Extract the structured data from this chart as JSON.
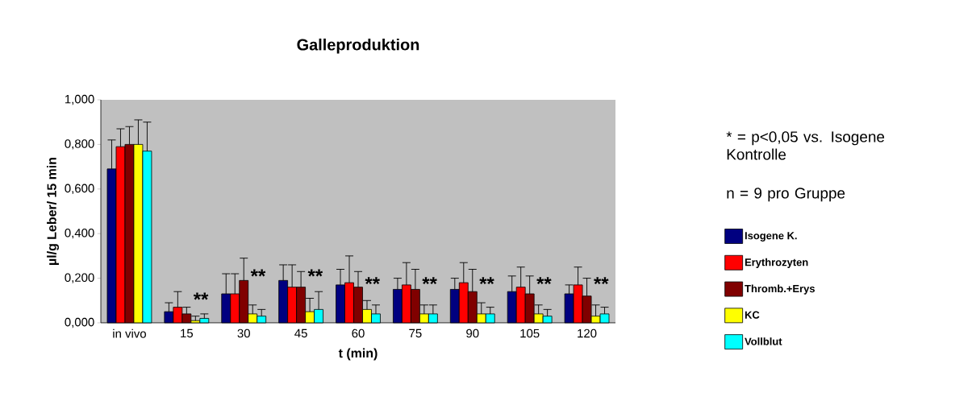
{
  "chart_data": {
    "type": "bar",
    "title": "Galleproduktion",
    "xlabel": "t (min)",
    "ylabel": "µl/g Leber/ 15 min",
    "categories": [
      "in vivo",
      "15",
      "30",
      "45",
      "60",
      "75",
      "90",
      "105",
      "120"
    ],
    "series": [
      {
        "name": "Isogene K.",
        "color": "#000080",
        "values": [
          0.69,
          0.05,
          0.13,
          0.19,
          0.17,
          0.15,
          0.15,
          0.14,
          0.13
        ],
        "errors": [
          [
            0.69,
            0.82
          ],
          [
            0.05,
            0.09
          ],
          [
            0.13,
            0.22
          ],
          [
            0.19,
            0.26
          ],
          [
            0.17,
            0.24
          ],
          [
            0.15,
            0.2
          ],
          [
            0.15,
            0.2
          ],
          [
            0.14,
            0.21
          ],
          [
            0.13,
            0.17
          ]
        ]
      },
      {
        "name": "Erythrozyten",
        "color": "#ff0000",
        "values": [
          0.79,
          0.07,
          0.13,
          0.16,
          0.18,
          0.17,
          0.18,
          0.16,
          0.17
        ],
        "errors": [
          [
            0.79,
            0.87
          ],
          [
            0.07,
            0.14
          ],
          [
            0.13,
            0.22
          ],
          [
            0.16,
            0.26
          ],
          [
            0.18,
            0.3
          ],
          [
            0.17,
            0.27
          ],
          [
            0.18,
            0.27
          ],
          [
            0.16,
            0.25
          ],
          [
            0.17,
            0.25
          ]
        ]
      },
      {
        "name": "Thromb.+Erys",
        "color": "#800000",
        "values": [
          0.8,
          0.04,
          0.19,
          0.16,
          0.16,
          0.15,
          0.14,
          0.13,
          0.12
        ],
        "errors": [
          [
            0.8,
            0.88
          ],
          [
            0.04,
            0.07
          ],
          [
            0.19,
            0.29
          ],
          [
            0.16,
            0.23
          ],
          [
            0.16,
            0.23
          ],
          [
            0.15,
            0.24
          ],
          [
            0.14,
            0.24
          ],
          [
            0.13,
            0.21
          ],
          [
            0.12,
            0.2
          ]
        ]
      },
      {
        "name": "KC",
        "color": "#ffff00",
        "values": [
          0.8,
          0.01,
          0.04,
          0.05,
          0.06,
          0.04,
          0.04,
          0.04,
          0.03
        ],
        "errors": [
          [
            0.8,
            0.91
          ],
          [
            0.01,
            0.03
          ],
          [
            0.04,
            0.08
          ],
          [
            0.05,
            0.11
          ],
          [
            0.06,
            0.1
          ],
          [
            0.04,
            0.08
          ],
          [
            0.04,
            0.09
          ],
          [
            0.04,
            0.08
          ],
          [
            0.03,
            0.08
          ]
        ]
      },
      {
        "name": "Vollblut",
        "color": "#00ffff",
        "values": [
          0.77,
          0.02,
          0.03,
          0.06,
          0.04,
          0.04,
          0.04,
          0.03,
          0.04
        ],
        "errors": [
          [
            0.77,
            0.9
          ],
          [
            0.02,
            0.04
          ],
          [
            0.03,
            0.06
          ],
          [
            0.06,
            0.14
          ],
          [
            0.04,
            0.08
          ],
          [
            0.04,
            0.08
          ],
          [
            0.04,
            0.07
          ],
          [
            0.03,
            0.06
          ],
          [
            0.04,
            0.07
          ]
        ]
      }
    ],
    "ylim": [
      0,
      1
    ],
    "yticks": [
      {
        "value": 0,
        "label": "0,000"
      },
      {
        "value": 0.2,
        "label": "0,200"
      },
      {
        "value": 0.4,
        "label": "0,400"
      },
      {
        "value": 0.6,
        "label": "0,600"
      },
      {
        "value": 0.8,
        "label": "0,800"
      },
      {
        "value": 1,
        "label": "1,000"
      }
    ],
    "grid": false,
    "legend": "right",
    "annotations": [
      {
        "text": "**",
        "x": "15",
        "y": 0.075
      },
      {
        "text": "**",
        "x": "30",
        "y": 0.18
      },
      {
        "text": "**",
        "x": "45",
        "y": 0.18
      },
      {
        "text": "**",
        "x": "60",
        "y": 0.145
      },
      {
        "text": "**",
        "x": "75",
        "y": 0.145
      },
      {
        "text": "**",
        "x": "90",
        "y": 0.145
      },
      {
        "text": "**",
        "x": "105",
        "y": 0.145
      },
      {
        "text": "**",
        "x": "120",
        "y": 0.145
      },
      "* = p<0,05 vs. Isogene Kontrolle",
      "n  = 9 pro Gruppe"
    ]
  }
}
